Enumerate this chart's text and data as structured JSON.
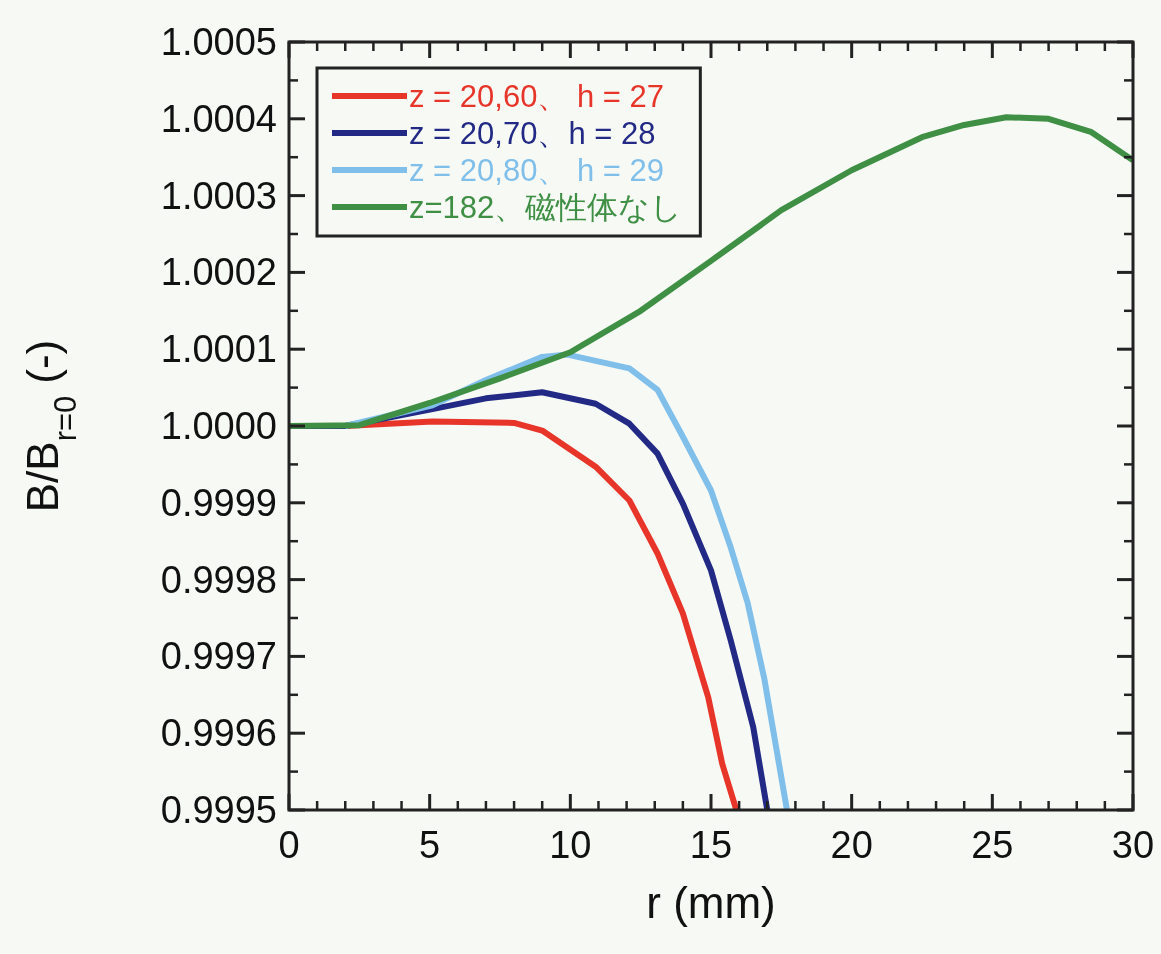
{
  "chart_data": {
    "type": "line",
    "xlabel": "r (mm)",
    "ylabel": "B/B$_{r=0}$ (-)",
    "xlim": [
      0,
      30
    ],
    "xticks": [
      0,
      5,
      10,
      15,
      20,
      25,
      30
    ],
    "ylim": [
      0.9995,
      1.0005
    ],
    "yticks": [
      {
        "value": 0.9995,
        "label": "0.9995"
      },
      {
        "value": 0.9996,
        "label": "0.9996"
      },
      {
        "value": 0.9997,
        "label": "0.9997"
      },
      {
        "value": 0.9998,
        "label": "0.9998"
      },
      {
        "value": 0.9999,
        "label": "0.9999"
      },
      {
        "value": 1.0,
        "label": "1.0000"
      },
      {
        "value": 1.0001,
        "label": "1.0001"
      },
      {
        "value": 1.0002,
        "label": "1.0002"
      },
      {
        "value": 1.0003,
        "label": "1.0003"
      },
      {
        "value": 1.0004,
        "label": "1.0004"
      },
      {
        "value": 1.0005,
        "label": "1.0005"
      }
    ],
    "grid": false,
    "legend": "top left",
    "marker": "none",
    "line_style": "solid",
    "series": [
      {
        "name": "z = 20,60、 h = 27",
        "color": "#e8352a",
        "x": [
          0,
          2,
          5.1,
          8,
          9,
          10.9,
          12.1,
          13.1,
          14,
          14.9,
          15.4,
          15.9
        ],
        "values": [
          1.0,
          1.0,
          1.000006,
          1.000004,
          0.999994,
          0.999947,
          0.999903,
          0.999834,
          0.999756,
          0.999647,
          0.99956,
          0.9995
        ]
      },
      {
        "name": "z = 20,70、h = 28",
        "color": "#222a85",
        "x": [
          0,
          2,
          5.1,
          7,
          9,
          10.9,
          12.1,
          13.1,
          14,
          15,
          15.7,
          16.5,
          17.0
        ],
        "values": [
          1.0,
          1.0,
          1.000022,
          1.000036,
          1.000044,
          1.000029,
          1.000003,
          0.999964,
          0.999899,
          0.999812,
          0.999721,
          0.999608,
          0.9995
        ]
      },
      {
        "name": "z = 20,80、 h = 29",
        "color": "#7fbfea",
        "x": [
          2,
          5.1,
          7,
          9,
          9.9,
          12.1,
          13.1,
          14,
          15,
          15.7,
          16.3,
          16.9,
          17.7
        ],
        "values": [
          1.0,
          1.000027,
          1.00006,
          1.00009,
          1.000093,
          1.000075,
          1.000047,
          0.999986,
          0.999916,
          0.999842,
          0.99977,
          0.99967,
          0.9995
        ]
      },
      {
        "name": "z=182、磁性体なし",
        "color": "#3f8f45",
        "x": [
          0,
          2.5,
          5,
          7.5,
          10,
          12.5,
          15,
          17.5,
          20,
          22.5,
          24,
          25.5,
          27,
          28.5,
          30
        ],
        "values": [
          1.0,
          1.000001,
          1.00003,
          1.000062,
          1.000096,
          1.00015,
          1.000215,
          1.000281,
          1.000333,
          1.000376,
          1.000392,
          1.000402,
          1.0004,
          1.000383,
          1.000346
        ]
      }
    ]
  }
}
